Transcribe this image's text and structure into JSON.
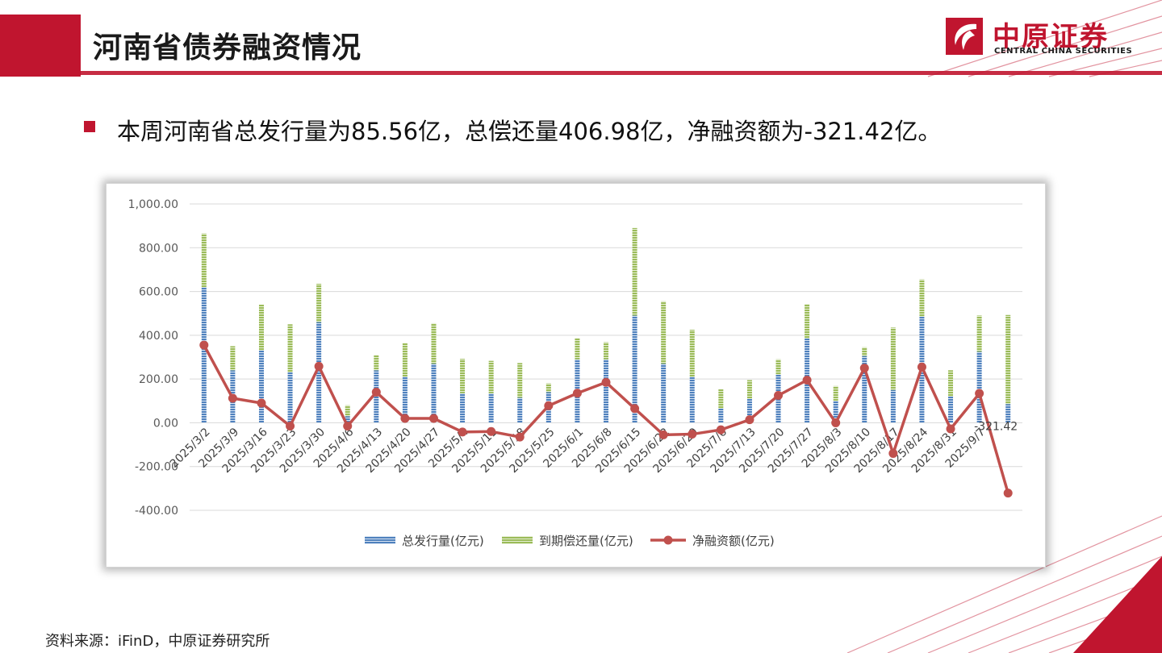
{
  "title": "河南省债券融资情况",
  "logo": {
    "cn": "中原证券",
    "en": "CENTRAL CHINA SECURITIES"
  },
  "summary": "本周河南省总发行量为85.56亿，总偿还量406.98亿，净融资额为-321.42亿。",
  "source": "资料来源：iFinD，中原证券研究所",
  "colors": {
    "accent": "#c0152f",
    "issue": "#4f81bd",
    "repay": "#9bbb59",
    "net": "#c0504d"
  },
  "chart_data": {
    "type": "bar",
    "stacked": true,
    "categories": [
      "2025/3/2",
      "2025/3/9",
      "2025/3/16",
      "2025/3/23",
      "2025/3/30",
      "2025/4/6",
      "2025/4/13",
      "2025/4/20",
      "2025/4/27",
      "2025/5/4",
      "2025/5/11",
      "2025/5/18",
      "2025/5/25",
      "2025/6/1",
      "2025/6/8",
      "2025/6/15",
      "2025/6/22",
      "2025/6/29",
      "2025/7/6",
      "2025/7/13",
      "2025/7/20",
      "2025/7/27",
      "2025/8/3",
      "2025/8/10",
      "2025/8/17",
      "2025/8/24",
      "2025/8/31",
      "2025/9/7",
      ""
    ],
    "series": [
      {
        "name": "总发行量(亿元)",
        "type": "bar",
        "values": [
          620,
          240,
          330,
          230,
          460,
          30,
          240,
          210,
          270,
          135,
          135,
          115,
          140,
          290,
          290,
          490,
          270,
          210,
          65,
          110,
          220,
          385,
          100,
          305,
          150,
          485,
          120,
          325,
          85.56
        ]
      },
      {
        "name": "到期偿还量(亿元)",
        "type": "bar",
        "values": [
          245,
          110,
          210,
          220,
          175,
          50,
          70,
          155,
          185,
          157,
          148,
          158,
          40,
          97,
          78,
          400,
          285,
          215,
          88,
          85,
          70,
          158,
          68,
          40,
          285,
          170,
          120,
          165,
          406.98
        ]
      },
      {
        "name": "净融资额(亿元)",
        "type": "line",
        "values": [
          355,
          112,
          90,
          -15,
          258,
          -15,
          140,
          20,
          20,
          -42,
          -40,
          -65,
          78,
          135,
          185,
          65,
          -55,
          -52,
          -32,
          14,
          125,
          195,
          0,
          250,
          -140,
          255,
          -28,
          134,
          -321.42
        ]
      }
    ],
    "data_label": {
      "series": 2,
      "index": 28,
      "text": "-321.42"
    },
    "ylim": [
      -400,
      1000
    ],
    "yticks": [
      "1,000.00",
      "800.00",
      "600.00",
      "400.00",
      "200.00",
      "0.00",
      "-200.00",
      "-400.00"
    ],
    "ytick_values": [
      1000,
      800,
      600,
      400,
      200,
      0,
      -200,
      -400
    ],
    "grid": true,
    "legend": "bottom"
  }
}
